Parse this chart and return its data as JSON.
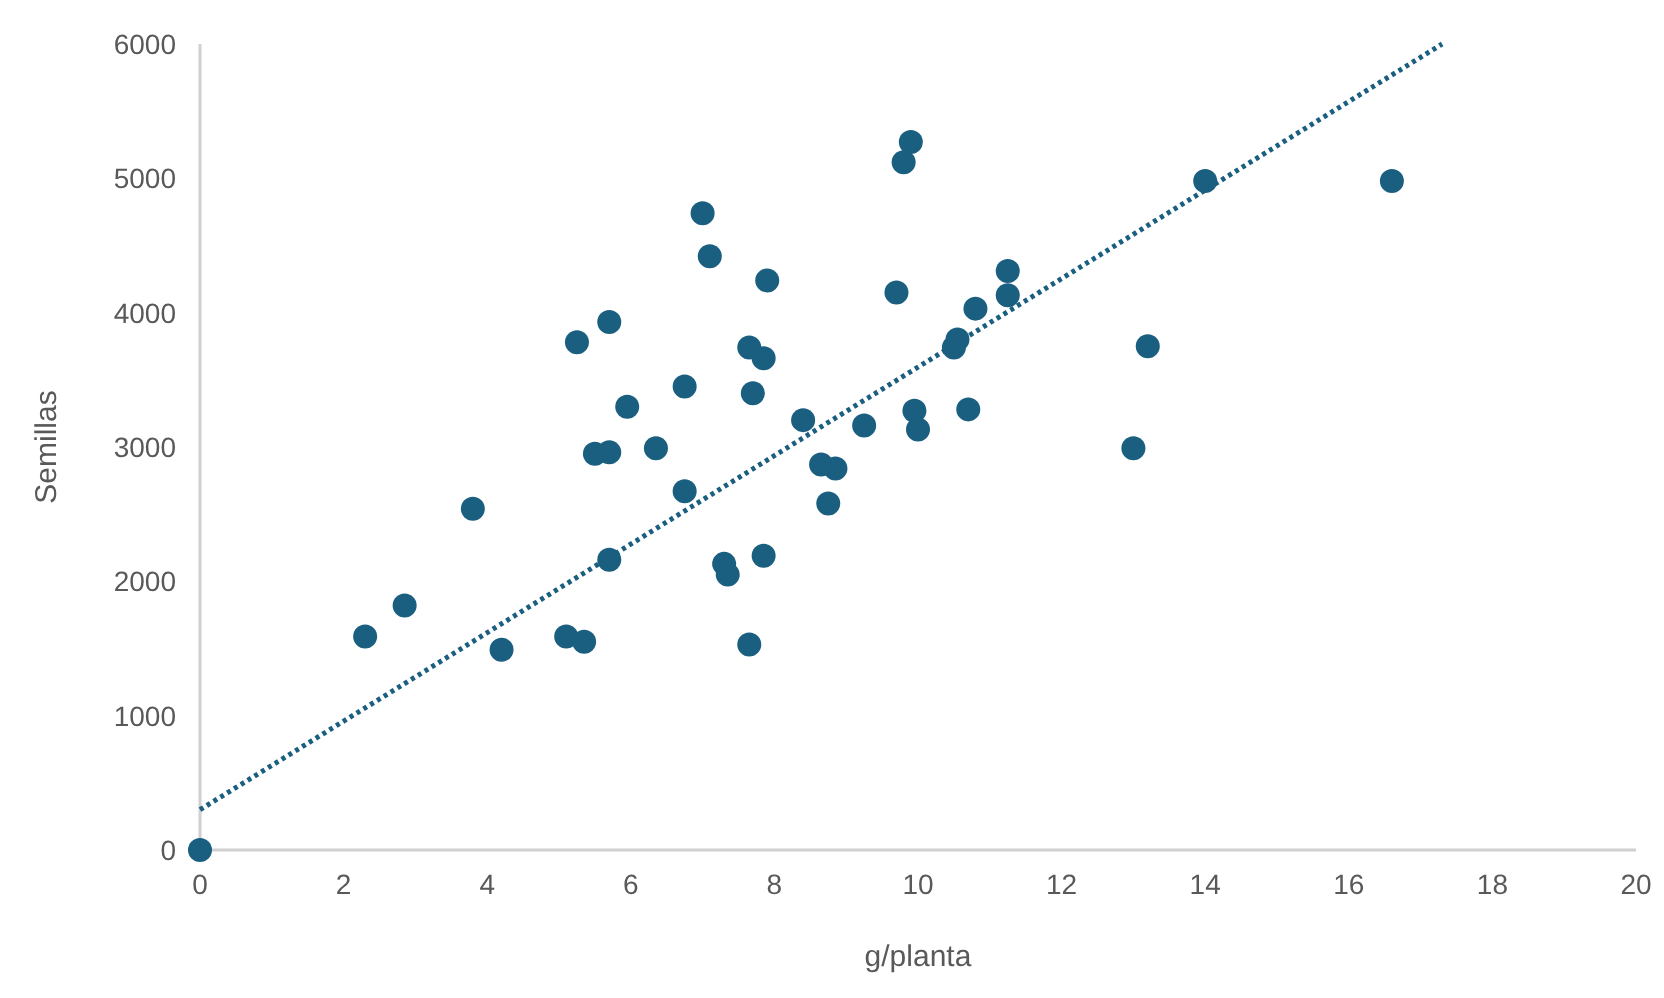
{
  "chart_data": {
    "type": "scatter",
    "xlabel": "g/planta",
    "ylabel": "Semillas",
    "xlim": [
      0,
      20
    ],
    "ylim": [
      0,
      6000
    ],
    "xticks": [
      0,
      2,
      4,
      6,
      8,
      10,
      12,
      14,
      16,
      18,
      20
    ],
    "yticks": [
      0,
      1000,
      2000,
      3000,
      4000,
      5000,
      6000
    ],
    "grid": false,
    "series": [
      {
        "color": "#1a5f80",
        "marker": "circle",
        "x": [
          0,
          2.3,
          2.85,
          3.8,
          4.2,
          5.1,
          5.35,
          5.25,
          5.7,
          5.5,
          5.7,
          5.7,
          5.95,
          6.35,
          6.75,
          6.75,
          7.0,
          7.1,
          7.3,
          7.35,
          7.65,
          7.65,
          7.85,
          7.7,
          7.85,
          7.9,
          8.4,
          8.65,
          8.75,
          8.85,
          9.25,
          9.7,
          9.8,
          9.9,
          9.95,
          10.0,
          10.5,
          10.55,
          10.8,
          10.7,
          11.25,
          11.25,
          13.0,
          13.2,
          14.0,
          16.6
        ],
        "values": [
          0,
          1590,
          1820,
          2540,
          1490,
          1590,
          1550,
          3780,
          3930,
          2950,
          2960,
          2160,
          3300,
          2990,
          3450,
          2670,
          4740,
          4420,
          2130,
          2050,
          1530,
          3740,
          3660,
          3400,
          2190,
          4240,
          3200,
          2870,
          2580,
          2840,
          3160,
          4150,
          5120,
          5270,
          3270,
          3130,
          3740,
          3800,
          4030,
          3280,
          4310,
          4130,
          2990,
          3750,
          4980,
          4980
        ]
      },
      {
        "type": "line",
        "color": "#1a5f80",
        "line_style": "dotted",
        "marker": "none",
        "x": [
          0,
          17.3
        ],
        "values": [
          300,
          6000
        ]
      }
    ]
  }
}
